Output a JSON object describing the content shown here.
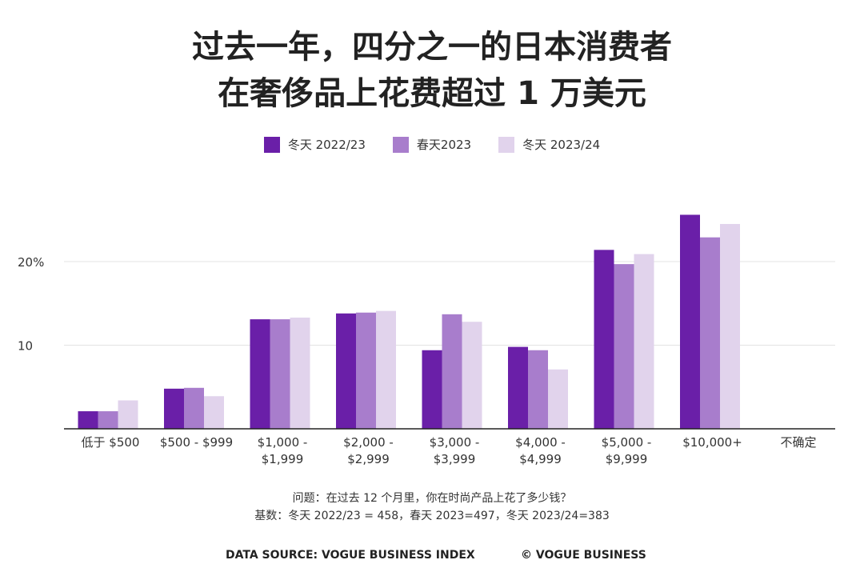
{
  "chart_data": {
    "type": "bar",
    "title_lines": [
      "过去一年，四分之一的日本消费者",
      "在奢侈品上花费超过 1 万美元"
    ],
    "categories": [
      [
        "低于 $500"
      ],
      [
        "$500 - $999"
      ],
      [
        "$1,000 -",
        "$1,999"
      ],
      [
        "$2,000 -",
        "$2,999"
      ],
      [
        "$3,000 -",
        "$3,999"
      ],
      [
        "$4,000 -",
        "$4,999"
      ],
      [
        "$5,000 -",
        "$9,999"
      ],
      [
        "$10,000+"
      ],
      [
        "不确定"
      ]
    ],
    "series": [
      {
        "name": "冬天 2022/23",
        "color": "#6a1fa8",
        "values": [
          2.1,
          4.8,
          13.1,
          13.8,
          9.4,
          9.8,
          21.4,
          25.6,
          0
        ]
      },
      {
        "name": "春天2023",
        "color": "#a87dcc",
        "values": [
          2.1,
          4.9,
          13.1,
          13.9,
          13.7,
          9.4,
          19.7,
          22.9,
          0
        ]
      },
      {
        "name": "冬天 2023/24",
        "color": "#e1d3ec",
        "values": [
          3.4,
          3.9,
          13.3,
          14.1,
          12.8,
          7.1,
          20.9,
          24.5,
          0
        ]
      }
    ],
    "yticks": [
      {
        "value": 10,
        "label": "10"
      },
      {
        "value": 20,
        "label": "20%"
      }
    ],
    "ylim": [
      0,
      27
    ],
    "grid": true,
    "legend_position": "top-center",
    "xlabel": "",
    "ylabel": ""
  },
  "footnote": {
    "line1": "问题：在过去 12 个月里，你在时尚产品上花了多少钱？",
    "line2": "基数：冬天 2022/23 = 458，春天 2023=497，冬天 2023/24=383"
  },
  "footer": {
    "source": "DATA SOURCE: VOGUE BUSINESS INDEX",
    "copyright": "© VOGUE BUSINESS"
  }
}
